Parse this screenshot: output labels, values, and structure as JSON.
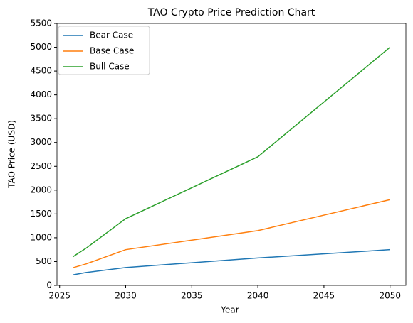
{
  "chart_data": {
    "type": "line",
    "title": "TAO Crypto Price Prediction Chart",
    "x_label": "Year",
    "y_label": "TAO Price (USD)",
    "x": [
      2026,
      2027,
      2030,
      2040,
      2050
    ],
    "series": [
      {
        "name": "Bear Case",
        "color": "#1f77b4",
        "values": [
          220,
          270,
          375,
          575,
          750
        ]
      },
      {
        "name": "Base Case",
        "color": "#ff7f0e",
        "values": [
          370,
          450,
          750,
          1150,
          1800
        ]
      },
      {
        "name": "Bull Case",
        "color": "#2ca02c",
        "values": [
          600,
          780,
          1400,
          2700,
          5000
        ]
      }
    ],
    "xlim": [
      2024.8,
      2051.2
    ],
    "xticks": [
      2025,
      2030,
      2035,
      2040,
      2045,
      2050
    ],
    "ylim": [
      0,
      5500
    ],
    "yticks": [
      0,
      500,
      1000,
      1500,
      2000,
      2500,
      3000,
      3500,
      4000,
      4500,
      5000,
      5500
    ],
    "legend": "upper left"
  }
}
